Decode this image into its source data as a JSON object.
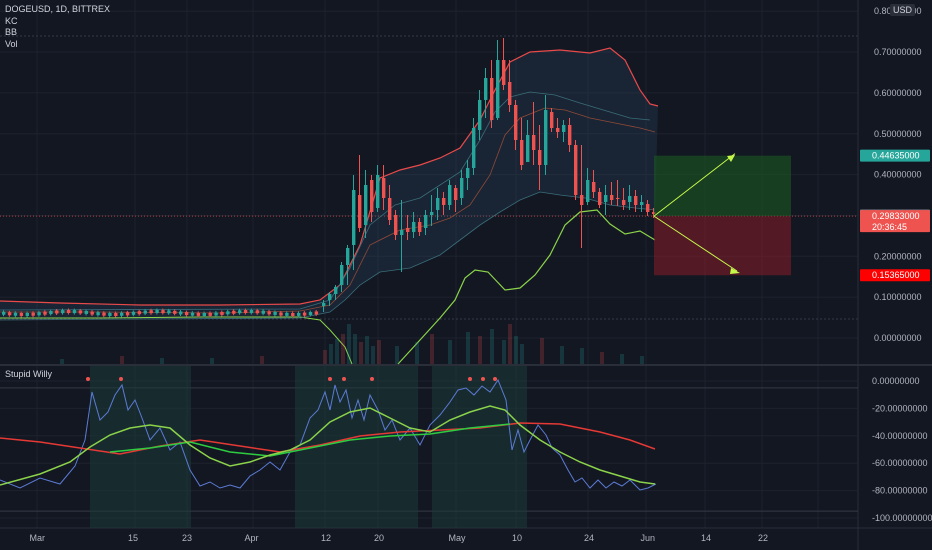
{
  "symbol_line": "DOGEUSD, 1D, BITTREX",
  "indicators": [
    "KC",
    "BB",
    "Vol"
  ],
  "currency": "USD",
  "price_axis": {
    "ticks": [
      {
        "label": "0.80000000",
        "value": 0.8
      },
      {
        "label": "0.70000000",
        "value": 0.7
      },
      {
        "label": "0.60000000",
        "value": 0.6
      },
      {
        "label": "0.50000000",
        "value": 0.5
      },
      {
        "label": "0.40000000",
        "value": 0.4
      },
      {
        "label": "0.20000000",
        "value": 0.2
      },
      {
        "label": "0.10000000",
        "value": 0.1
      },
      {
        "label": "0.00000000",
        "value": 0.0
      }
    ],
    "markers": [
      {
        "label": "0.44635000",
        "value": 0.44635,
        "color": "#26a69a",
        "fg": "#ffffff"
      },
      {
        "label": "0.30000000",
        "value": 0.3,
        "color": "#787b86",
        "fg": "#ffffff"
      },
      {
        "label": "0.29833000",
        "value": 0.29833,
        "color": "#ef5350",
        "fg": "#ffffff",
        "sub": "20:36:45"
      },
      {
        "label": "0.15365000",
        "value": 0.15365,
        "color": "#ff0000",
        "fg": "#ffffff"
      }
    ]
  },
  "oscillator": {
    "name": "Stupid Willy",
    "ticks": [
      {
        "label": "0.00000000",
        "value": 0
      },
      {
        "label": "-20.00000000",
        "value": -20
      },
      {
        "label": "-40.00000000",
        "value": -40
      },
      {
        "label": "-60.00000000",
        "value": -60
      },
      {
        "label": "-80.00000000",
        "value": -80
      },
      {
        "label": "-100.00000000",
        "value": -100
      }
    ]
  },
  "time_axis": [
    "Mar",
    "15",
    "23",
    "Apr",
    "12",
    "20",
    "May",
    "10",
    "24",
    "Jun",
    "14",
    "22"
  ],
  "position_tool": {
    "entry": 0.29833,
    "target": 0.44635,
    "stop": 0.15365
  },
  "colors": {
    "up": "#26a69a",
    "down": "#ef5350",
    "bb_band": "#e84a4a",
    "kc_line": "#8bd34a",
    "osc_fast": "#8bd34a",
    "osc_slow": "#e53935",
    "osc_raw": "#5b7bd5"
  }
}
